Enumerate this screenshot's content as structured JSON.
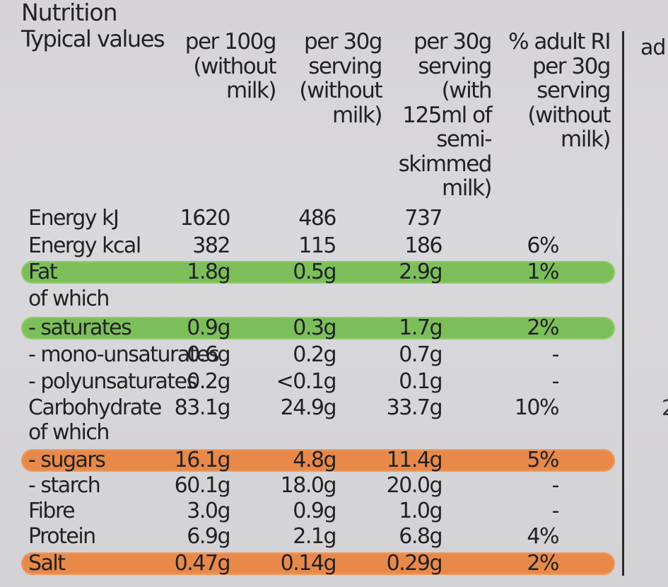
{
  "title": "Nutrition",
  "typical_values_label": "Typical values",
  "columns": [
    {
      "lines": [
        "per 100g",
        "(without",
        "milk)"
      ]
    },
    {
      "lines": [
        "per 30g",
        "serving",
        "(without",
        "milk)"
      ]
    },
    {
      "lines": [
        "per 30g",
        "serving",
        "(with",
        "125ml of",
        "semi-",
        "skimmed",
        "milk)"
      ]
    },
    {
      "lines": [
        "% adult RI",
        "per 30g",
        "serving",
        "(without",
        "milk)"
      ]
    }
  ],
  "side_text": "ad",
  "stray_glyph": "2",
  "rows": [
    {
      "label": "Energy kJ",
      "values": [
        "1620",
        "486",
        "737",
        ""
      ],
      "highlight": "none"
    },
    {
      "label": "Energy kcal",
      "values": [
        "382",
        "115",
        "186",
        "6%"
      ],
      "highlight": "none"
    },
    {
      "label": "Fat",
      "values": [
        "1.8g",
        "0.5g",
        "2.9g",
        "1%"
      ],
      "highlight": "green"
    },
    {
      "label": "of which",
      "values": [
        "",
        "",
        "",
        ""
      ],
      "highlight": "none"
    },
    {
      "label": "- saturates",
      "values": [
        "0.9g",
        "0.3g",
        "1.7g",
        "2%"
      ],
      "highlight": "green"
    },
    {
      "label": "- mono-unsaturates",
      "values": [
        "0.6g",
        "0.2g",
        "0.7g",
        "-"
      ],
      "highlight": "none"
    },
    {
      "label": "- polyunsaturates",
      "values": [
        "0.2g",
        "<0.1g",
        "0.1g",
        "-"
      ],
      "highlight": "none"
    },
    {
      "label": "Carbohydrate",
      "values": [
        "83.1g",
        "24.9g",
        "33.7g",
        "10%"
      ],
      "highlight": "none"
    },
    {
      "label": "of which",
      "values": [
        "",
        "",
        "",
        ""
      ],
      "highlight": "none"
    },
    {
      "label": "- sugars",
      "values": [
        "16.1g",
        "4.8g",
        "11.4g",
        "5%"
      ],
      "highlight": "orange"
    },
    {
      "label": "- starch",
      "values": [
        "60.1g",
        "18.0g",
        "20.0g",
        "-"
      ],
      "highlight": "none"
    },
    {
      "label": "Fibre",
      "values": [
        "3.0g",
        "0.9g",
        "1.0g",
        "-"
      ],
      "highlight": "none"
    },
    {
      "label": "Protein",
      "values": [
        "6.9g",
        "2.1g",
        "6.8g",
        "4%"
      ],
      "highlight": "none"
    },
    {
      "label": "Salt",
      "values": [
        "0.47g",
        "0.14g",
        "0.29g",
        "2%"
      ],
      "highlight": "orange"
    }
  ],
  "colors": {
    "green_band": "#7cbf5a",
    "orange_band": "#e8894a",
    "text": "#222224"
  }
}
